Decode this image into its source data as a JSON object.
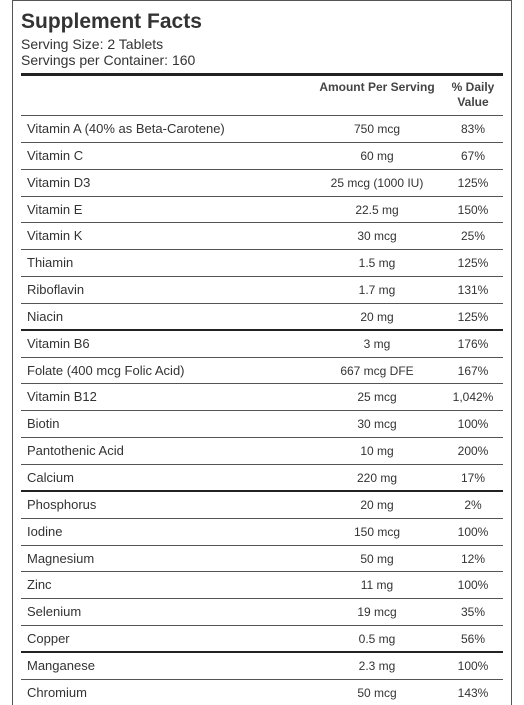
{
  "label": {
    "title": "Supplement Facts",
    "serving_size": "Serving Size: 2 Tablets",
    "servings_per_container": "Servings per Container: 160"
  },
  "table": {
    "headers": {
      "amount": "Amount Per Serving",
      "daily_value": "% Daily Value"
    },
    "rows": [
      {
        "name": "Vitamin A (40% as Beta-Carotene)",
        "amount": "750 mcg",
        "dv": "83%"
      },
      {
        "name": "Vitamin C",
        "amount": "60 mg",
        "dv": "67%"
      },
      {
        "name": "Vitamin D3",
        "amount": "25 mcg (1000 IU)",
        "dv": "125%"
      },
      {
        "name": "Vitamin E",
        "amount": "22.5 mg",
        "dv": "150%"
      },
      {
        "name": "Vitamin K",
        "amount": "30 mcg",
        "dv": "25%"
      },
      {
        "name": "Thiamin",
        "amount": "1.5 mg",
        "dv": "125%"
      },
      {
        "name": "Riboflavin",
        "amount": "1.7 mg",
        "dv": "131%"
      },
      {
        "name": "Niacin",
        "amount": "20 mg",
        "dv": "125%"
      },
      {
        "name": "Vitamin B6",
        "amount": "3 mg",
        "dv": "176%"
      },
      {
        "name": "Folate (400 mcg Folic Acid)",
        "amount": "667 mcg DFE",
        "dv": "167%"
      },
      {
        "name": "Vitamin B12",
        "amount": "25 mcg",
        "dv": "1,042%"
      },
      {
        "name": "Biotin",
        "amount": "30 mcg",
        "dv": "100%"
      },
      {
        "name": "Pantothenic Acid",
        "amount": "10 mg",
        "dv": "200%"
      },
      {
        "name": "Calcium",
        "amount": "220 mg",
        "dv": "17%"
      },
      {
        "name": "Phosphorus",
        "amount": "20 mg",
        "dv": "2%"
      },
      {
        "name": "Iodine",
        "amount": "150 mcg",
        "dv": "100%"
      },
      {
        "name": "Magnesium",
        "amount": "50 mg",
        "dv": "12%"
      },
      {
        "name": "Zinc",
        "amount": "11 mg",
        "dv": "100%"
      },
      {
        "name": "Selenium",
        "amount": "19 mcg",
        "dv": "35%"
      },
      {
        "name": "Copper",
        "amount": "0.5 mg",
        "dv": "56%"
      },
      {
        "name": "Manganese",
        "amount": "2.3 mg",
        "dv": "100%"
      },
      {
        "name": "Chromium",
        "amount": "50 mcg",
        "dv": "143%"
      }
    ]
  }
}
